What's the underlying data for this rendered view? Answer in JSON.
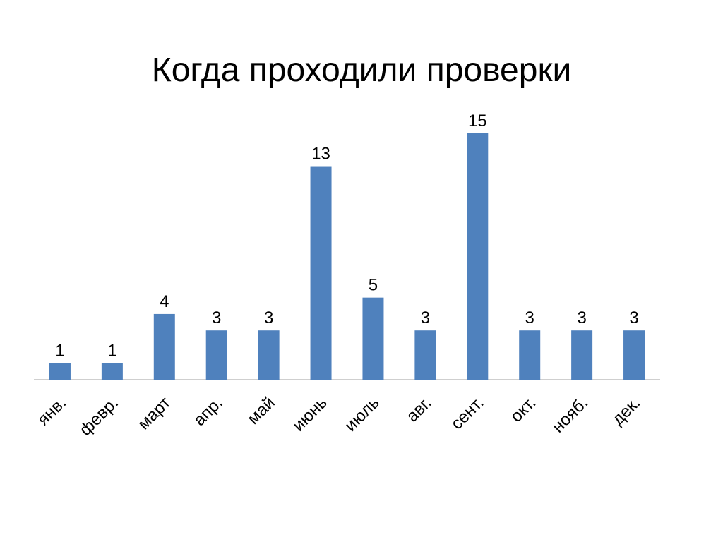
{
  "chart_data": {
    "type": "bar",
    "title": "Когда проходили проверки",
    "categories": [
      "янв.",
      "февр.",
      "март",
      "апр.",
      "май",
      "июнь",
      "июль",
      "авг.",
      "сент.",
      "окт.",
      "нояб.",
      "дек."
    ],
    "values": [
      1,
      1,
      4,
      3,
      3,
      13,
      5,
      3,
      15,
      3,
      3,
      3
    ],
    "color": "#4f81bd"
  }
}
